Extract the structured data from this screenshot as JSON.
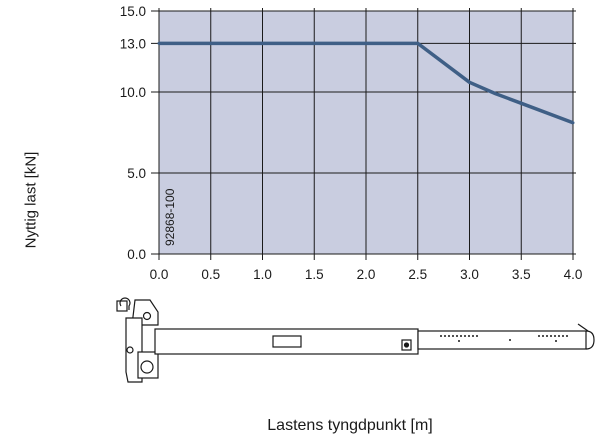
{
  "chart_data": {
    "type": "line",
    "xlabel": "Lastens tyngdpunkt [m]",
    "ylabel": "Nyttig last [kN]",
    "xlim": [
      0,
      4
    ],
    "ylim": [
      0,
      15
    ],
    "x_ticks": [
      "0.0",
      "0.5",
      "1.0",
      "1.5",
      "2.0",
      "2.5",
      "3.0",
      "3.5",
      "4.0"
    ],
    "y_ticks": [
      "0.0",
      "5.0",
      "10.0",
      "13.0",
      "15.0"
    ],
    "y_tick_values": [
      0,
      5,
      10,
      13,
      15
    ],
    "grid": true,
    "series": [
      {
        "x": [
          0.0,
          0.5,
          1.0,
          1.5,
          2.0,
          2.5,
          3.0,
          3.25,
          3.5,
          4.0
        ],
        "y": [
          13.0,
          13.0,
          13.0,
          13.0,
          13.0,
          13.0,
          10.6,
          9.9,
          9.3,
          8.1
        ]
      }
    ],
    "annotations": [
      "92868-100"
    ],
    "colors": {
      "plot_background": "#c9cde0",
      "line": "#3f5f86",
      "grid": "#1a1a1a"
    }
  },
  "illustration": {
    "name": "crane-jib-drawing"
  }
}
